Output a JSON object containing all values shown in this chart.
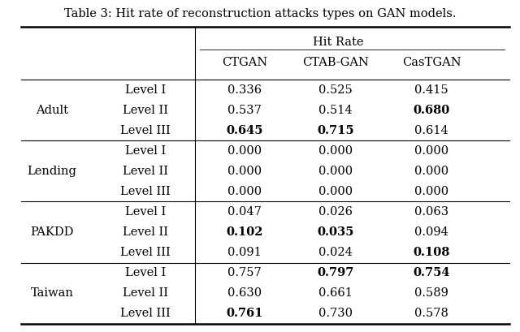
{
  "title": "Table 3: Hit rate of reconstruction attacks types on GAN models.",
  "datasets": [
    "Adult",
    "Lending",
    "PAKDD",
    "Taiwan"
  ],
  "levels": [
    "Level I",
    "Level II",
    "Level III"
  ],
  "data": {
    "Adult": {
      "Level I": [
        "0.336",
        "0.525",
        "0.415"
      ],
      "Level II": [
        "0.537",
        "0.514",
        "0.680"
      ],
      "Level III": [
        "0.645",
        "0.715",
        "0.614"
      ]
    },
    "Lending": {
      "Level I": [
        "0.000",
        "0.000",
        "0.000"
      ],
      "Level II": [
        "0.000",
        "0.000",
        "0.000"
      ],
      "Level III": [
        "0.000",
        "0.000",
        "0.000"
      ]
    },
    "PAKDD": {
      "Level I": [
        "0.047",
        "0.026",
        "0.063"
      ],
      "Level II": [
        "0.102",
        "0.035",
        "0.094"
      ],
      "Level III": [
        "0.091",
        "0.024",
        "0.108"
      ]
    },
    "Taiwan": {
      "Level I": [
        "0.757",
        "0.797",
        "0.754"
      ],
      "Level II": [
        "0.630",
        "0.661",
        "0.589"
      ],
      "Level III": [
        "0.761",
        "0.730",
        "0.578"
      ]
    }
  },
  "bold": {
    "Adult": {
      "Level I": [
        false,
        false,
        false
      ],
      "Level II": [
        false,
        false,
        true
      ],
      "Level III": [
        true,
        true,
        false
      ]
    },
    "Lending": {
      "Level I": [
        false,
        false,
        false
      ],
      "Level II": [
        false,
        false,
        false
      ],
      "Level III": [
        false,
        false,
        false
      ]
    },
    "PAKDD": {
      "Level I": [
        false,
        false,
        false
      ],
      "Level II": [
        true,
        true,
        false
      ],
      "Level III": [
        false,
        false,
        true
      ]
    },
    "Taiwan": {
      "Level I": [
        false,
        true,
        true
      ],
      "Level II": [
        false,
        false,
        false
      ],
      "Level III": [
        true,
        false,
        false
      ]
    }
  },
  "bg_color": "#ffffff",
  "text_color": "#000000",
  "font_size": 10.5,
  "title_font_size": 10.5
}
